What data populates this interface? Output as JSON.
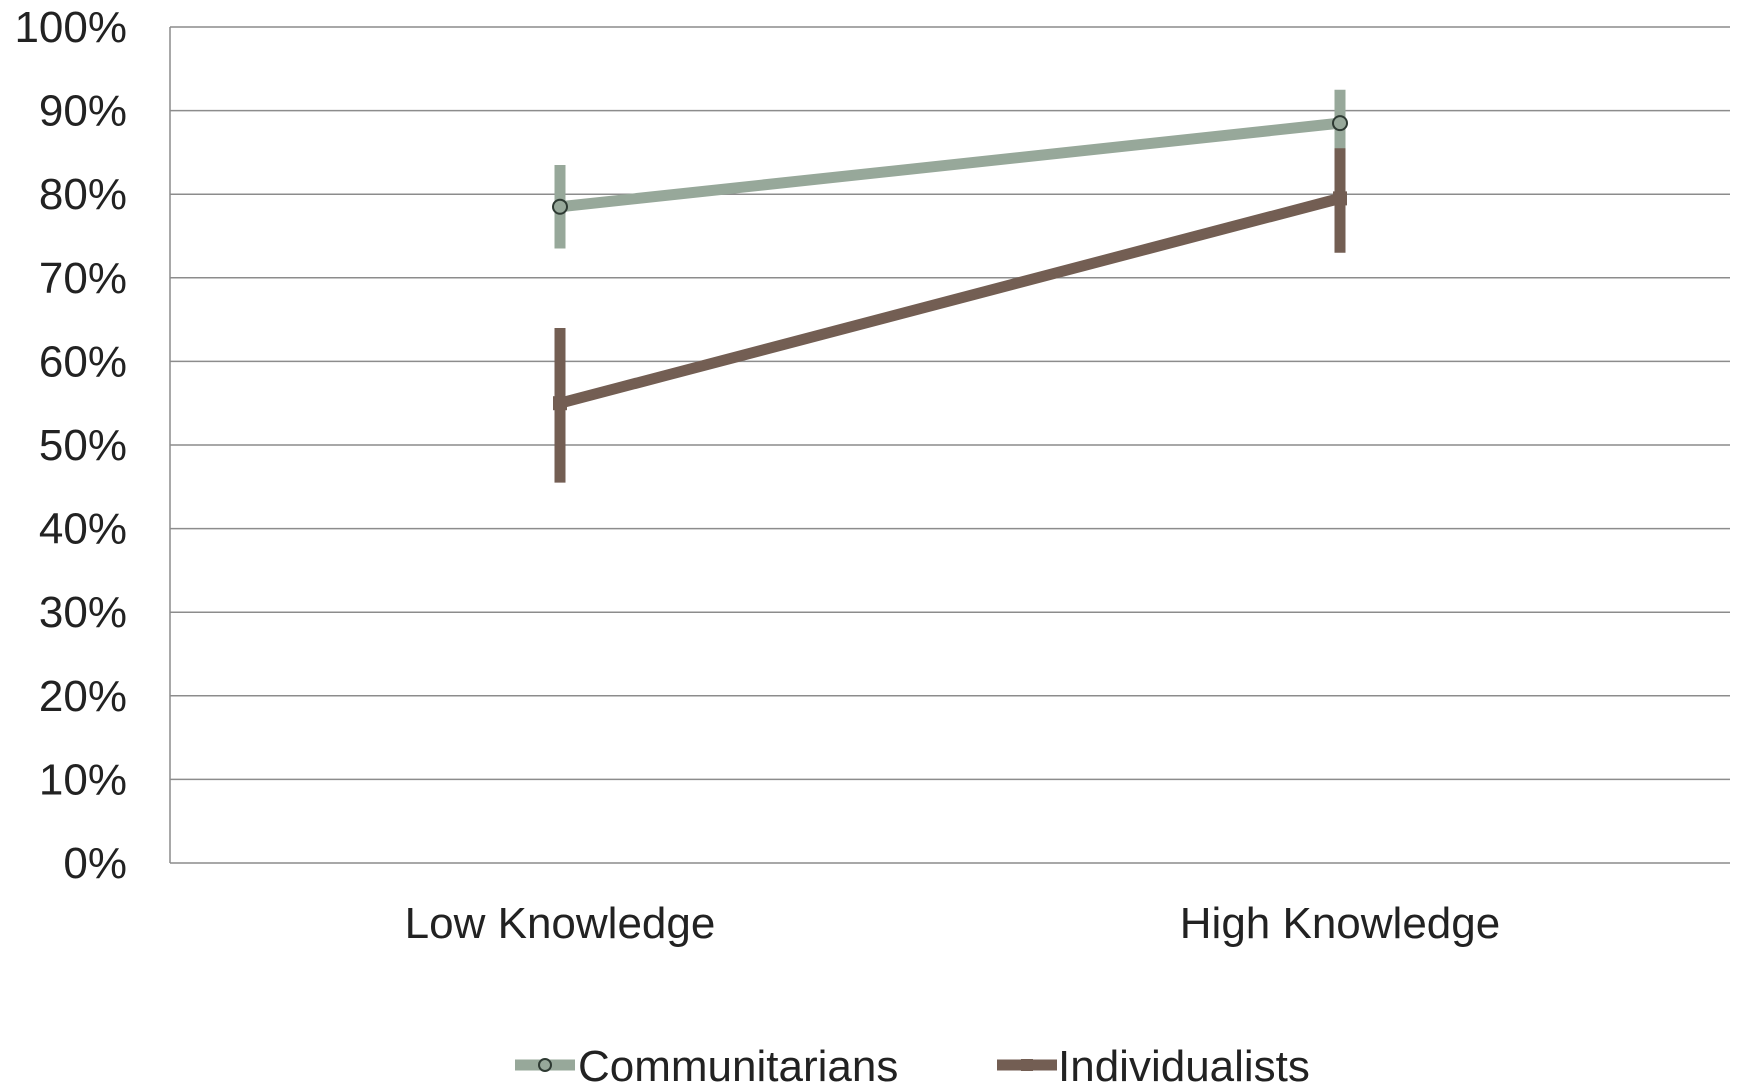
{
  "chart_data": {
    "type": "line",
    "categories": [
      "Low Knowledge",
      "High Knowledge"
    ],
    "ylim": [
      0,
      100
    ],
    "yticks": [
      "0%",
      "10%",
      "20%",
      "30%",
      "40%",
      "50%",
      "60%",
      "70%",
      "80%",
      "90%",
      "100%"
    ],
    "grid": true,
    "legend_position": "bottom",
    "series": [
      {
        "name": "Communitarians",
        "values": [
          78.5,
          88.5
        ],
        "error_low": [
          73.5,
          84.5
        ],
        "error_high": [
          83.5,
          92.5
        ],
        "color": "#97a89a",
        "marker": "circle"
      },
      {
        "name": "Individualists",
        "values": [
          55,
          79.5
        ],
        "error_low": [
          45.5,
          73
        ],
        "error_high": [
          64,
          85.5
        ],
        "color": "#735e53",
        "marker": "square"
      }
    ]
  }
}
